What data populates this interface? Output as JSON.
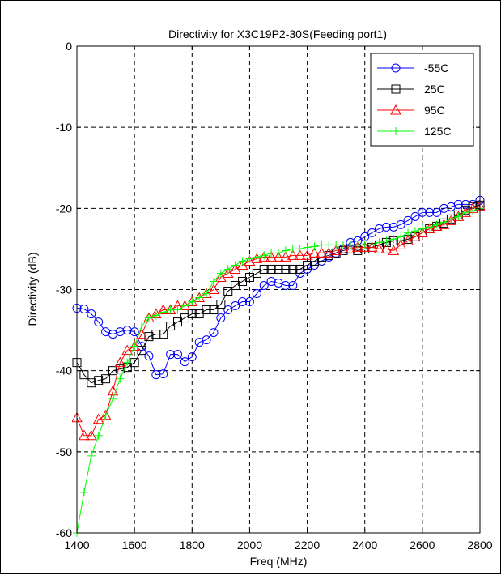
{
  "chart_data": {
    "type": "line",
    "title": "Directivity for X3C19P2-30S(Feeding port1)",
    "xlabel": "Freq (MHz)",
    "ylabel": "Directivity (dB)",
    "xlim": [
      1400,
      2800
    ],
    "ylim": [
      -60,
      0
    ],
    "xticks": [
      1400,
      1600,
      1800,
      2000,
      2200,
      2400,
      2600,
      2800
    ],
    "yticks": [
      0,
      -10,
      -20,
      -30,
      -40,
      -50,
      -60
    ],
    "grid": true,
    "legend_position": "top-right",
    "series": [
      {
        "name": "-55C",
        "color": "#0000ff",
        "marker": "circle",
        "x": [
          1400,
          1425,
          1450,
          1475,
          1500,
          1525,
          1550,
          1575,
          1600,
          1625,
          1650,
          1675,
          1700,
          1725,
          1750,
          1775,
          1800,
          1825,
          1850,
          1875,
          1900,
          1925,
          1950,
          1975,
          2000,
          2025,
          2050,
          2075,
          2100,
          2125,
          2150,
          2175,
          2200,
          2225,
          2250,
          2275,
          2300,
          2325,
          2350,
          2375,
          2400,
          2425,
          2450,
          2475,
          2500,
          2525,
          2550,
          2575,
          2600,
          2625,
          2650,
          2675,
          2700,
          2725,
          2750,
          2775,
          2800
        ],
        "y": [
          -32.3,
          -32.4,
          -33.0,
          -34.0,
          -35.2,
          -35.5,
          -35.2,
          -35.0,
          -35.2,
          -37.0,
          -38.2,
          -40.5,
          -40.4,
          -38.0,
          -38.0,
          -38.9,
          -38.3,
          -36.5,
          -36.2,
          -35.3,
          -33.5,
          -32.5,
          -32.0,
          -31.5,
          -31.5,
          -30.5,
          -29.5,
          -29.0,
          -29.2,
          -29.5,
          -29.5,
          -28.0,
          -27.5,
          -27.0,
          -26.5,
          -26.0,
          -25.5,
          -25.0,
          -24.2,
          -24.0,
          -23.5,
          -23.0,
          -22.5,
          -22.3,
          -22.3,
          -22.0,
          -21.5,
          -21.0,
          -20.5,
          -20.5,
          -20.5,
          -20.0,
          -19.8,
          -19.5,
          -19.5,
          -19.5,
          -19.0
        ]
      },
      {
        "name": "25C",
        "color": "#000000",
        "marker": "square",
        "x": [
          1400,
          1425,
          1450,
          1475,
          1500,
          1525,
          1550,
          1575,
          1600,
          1625,
          1650,
          1675,
          1700,
          1725,
          1750,
          1775,
          1800,
          1825,
          1850,
          1875,
          1900,
          1925,
          1950,
          1975,
          2000,
          2025,
          2050,
          2075,
          2100,
          2125,
          2150,
          2175,
          2200,
          2225,
          2250,
          2275,
          2300,
          2325,
          2350,
          2375,
          2400,
          2425,
          2450,
          2475,
          2500,
          2525,
          2550,
          2575,
          2600,
          2625,
          2650,
          2675,
          2700,
          2725,
          2750,
          2775,
          2800
        ],
        "y": [
          -39.0,
          -40.5,
          -41.5,
          -41.2,
          -41.0,
          -40.0,
          -39.8,
          -39.6,
          -39.0,
          -37.5,
          -35.8,
          -35.5,
          -35.5,
          -34.5,
          -34.0,
          -33.5,
          -33.0,
          -33.0,
          -32.5,
          -32.5,
          -31.8,
          -30.2,
          -29.5,
          -29.0,
          -28.5,
          -28.0,
          -27.5,
          -27.5,
          -27.5,
          -27.5,
          -27.5,
          -27.5,
          -27.0,
          -26.5,
          -26.0,
          -25.8,
          -25.5,
          -25.2,
          -25.0,
          -25.2,
          -25.0,
          -24.8,
          -24.5,
          -24.2,
          -24.0,
          -24.0,
          -23.8,
          -23.5,
          -23.0,
          -22.5,
          -22.2,
          -21.8,
          -21.3,
          -20.8,
          -20.2,
          -19.8,
          -19.6
        ]
      },
      {
        "name": "95C",
        "color": "#ff0000",
        "marker": "triangle",
        "x": [
          1400,
          1425,
          1450,
          1475,
          1500,
          1525,
          1550,
          1575,
          1600,
          1625,
          1650,
          1675,
          1700,
          1725,
          1750,
          1775,
          1800,
          1825,
          1850,
          1875,
          1900,
          1925,
          1950,
          1975,
          2000,
          2025,
          2050,
          2075,
          2100,
          2125,
          2150,
          2175,
          2200,
          2225,
          2250,
          2275,
          2300,
          2325,
          2350,
          2375,
          2400,
          2425,
          2450,
          2475,
          2500,
          2525,
          2550,
          2575,
          2600,
          2625,
          2650,
          2675,
          2700,
          2725,
          2750,
          2775,
          2800
        ],
        "y": [
          -45.8,
          -48.0,
          -48.0,
          -46.0,
          -45.5,
          -42.5,
          -39.0,
          -37.5,
          -37.0,
          -35.5,
          -33.5,
          -33.0,
          -32.5,
          -32.5,
          -32.0,
          -32.0,
          -31.5,
          -31.0,
          -30.5,
          -30.0,
          -28.5,
          -28.0,
          -27.5,
          -27.0,
          -26.5,
          -26.2,
          -26.0,
          -26.0,
          -26.0,
          -26.0,
          -25.8,
          -25.8,
          -25.8,
          -25.5,
          -25.5,
          -25.5,
          -25.2,
          -25.0,
          -25.0,
          -24.8,
          -24.8,
          -24.8,
          -25.0,
          -25.0,
          -25.2,
          -24.5,
          -24.0,
          -23.5,
          -23.0,
          -22.5,
          -22.2,
          -22.0,
          -21.5,
          -21.0,
          -20.5,
          -20.0,
          -19.7
        ]
      },
      {
        "name": "125C",
        "color": "#00ff00",
        "marker": "plus",
        "x": [
          1400,
          1425,
          1450,
          1475,
          1500,
          1525,
          1550,
          1575,
          1600,
          1625,
          1650,
          1675,
          1700,
          1725,
          1750,
          1775,
          1800,
          1825,
          1850,
          1875,
          1900,
          1925,
          1950,
          1975,
          2000,
          2025,
          2050,
          2075,
          2100,
          2125,
          2150,
          2175,
          2200,
          2225,
          2250,
          2275,
          2300,
          2325,
          2350,
          2375,
          2400,
          2425,
          2450,
          2475,
          2500,
          2525,
          2550,
          2575,
          2600,
          2625,
          2650,
          2675,
          2700,
          2725,
          2750,
          2775,
          2800
        ],
        "y": [
          -60.0,
          -55.0,
          -50.5,
          -48.0,
          -45.5,
          -43.5,
          -41.0,
          -39.0,
          -37.0,
          -34.5,
          -33.5,
          -33.2,
          -32.8,
          -32.5,
          -32.5,
          -32.0,
          -31.5,
          -31.0,
          -30.5,
          -29.0,
          -28.0,
          -27.5,
          -27.0,
          -26.5,
          -26.2,
          -26.0,
          -25.8,
          -25.5,
          -25.5,
          -25.2,
          -25.0,
          -25.0,
          -24.8,
          -24.7,
          -24.5,
          -24.5,
          -24.5,
          -24.5,
          -24.5,
          -24.5,
          -24.5,
          -24.5,
          -24.2,
          -24.0,
          -23.8,
          -23.5,
          -23.0,
          -22.8,
          -22.5,
          -22.3,
          -22.0,
          -21.7,
          -21.3,
          -21.0,
          -20.5,
          -20.3,
          -20.0
        ]
      }
    ]
  }
}
